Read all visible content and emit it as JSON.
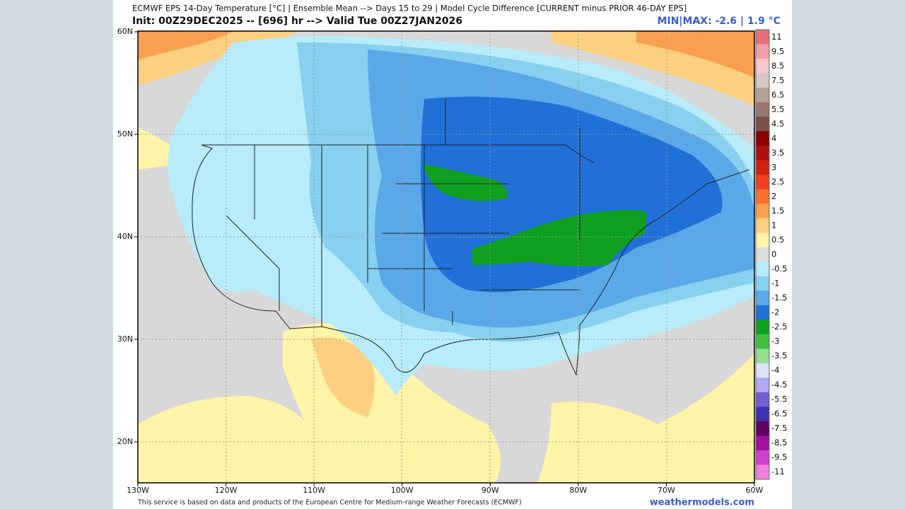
{
  "header": {
    "title": "ECMWF EPS 14-Day Temperature [°C] | Ensemble Mean --> Days 15 to 29 | Model Cycle Difference [CURRENT minus PRIOR 46-DAY EPS]",
    "init": "Init: 00Z29DEC2025 -- [696] hr --> Valid Tue 00Z27JAN2026",
    "minmax": "MIN|MAX: -2.6 | 1.9 °C"
  },
  "map": {
    "lat_labels": [
      "60N",
      "50N",
      "40N",
      "30N",
      "20N"
    ],
    "lon_labels": [
      "130W",
      "120W",
      "110W",
      "100W",
      "90W",
      "80W",
      "70W",
      "60W"
    ]
  },
  "colorbar": [
    {
      "label": "11",
      "color": "#e8707a"
    },
    {
      "label": "9.5",
      "color": "#f0a0a8"
    },
    {
      "label": "8.5",
      "color": "#f5c8cc"
    },
    {
      "label": "7.5",
      "color": "#d8c8c8"
    },
    {
      "label": "6.5",
      "color": "#b8a098"
    },
    {
      "label": "5.5",
      "color": "#987870"
    },
    {
      "label": "4.5",
      "color": "#785048"
    },
    {
      "label": "4",
      "color": "#8b0000"
    },
    {
      "label": "3.5",
      "color": "#b01010"
    },
    {
      "label": "3",
      "color": "#d02010"
    },
    {
      "label": "2.5",
      "color": "#f04020"
    },
    {
      "label": "2",
      "color": "#f87030"
    },
    {
      "label": "1.5",
      "color": "#f8a050"
    },
    {
      "label": "1",
      "color": "#fcd080"
    },
    {
      "label": "0.5",
      "color": "#fff4a8"
    },
    {
      "label": "0",
      "color": "#dcdcdc"
    },
    {
      "label": "-0.5",
      "color": "#b8ecfa"
    },
    {
      "label": "-1",
      "color": "#88d0f0"
    },
    {
      "label": "-1.5",
      "color": "#5aa8e8"
    },
    {
      "label": "-2",
      "color": "#2070d8"
    },
    {
      "label": "-2.5",
      "color": "#10a020"
    },
    {
      "label": "-3",
      "color": "#40c040"
    },
    {
      "label": "-3.5",
      "color": "#90e090"
    },
    {
      "label": "-4",
      "color": "#e0e0f8"
    },
    {
      "label": "-4.5",
      "color": "#b0a8f0"
    },
    {
      "label": "-5.5",
      "color": "#7060d0"
    },
    {
      "label": "-6.5",
      "color": "#4030b0"
    },
    {
      "label": "-7.5",
      "color": "#600060"
    },
    {
      "label": "-8.5",
      "color": "#a010a0"
    },
    {
      "label": "-9.5",
      "color": "#d040d0"
    },
    {
      "label": "-11",
      "color": "#f080e0"
    }
  ],
  "footer": {
    "credit": "This service is based on data and products of the European Centre for Medium-range Weather Forecasts (ECMWF)",
    "brand": "weathermodels.com"
  }
}
